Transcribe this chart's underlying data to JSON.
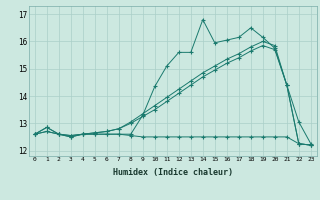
{
  "xlabel": "Humidex (Indice chaleur)",
  "bg_color": "#cce8e0",
  "line_color": "#1a7a6e",
  "grid_color": "#aacfc8",
  "xlim": [
    -0.5,
    23.5
  ],
  "ylim": [
    11.8,
    17.3
  ],
  "yticks": [
    12,
    13,
    14,
    15,
    16,
    17
  ],
  "xticks": [
    0,
    1,
    2,
    3,
    4,
    5,
    6,
    7,
    8,
    9,
    10,
    11,
    12,
    13,
    14,
    15,
    16,
    17,
    18,
    19,
    20,
    21,
    22,
    23
  ],
  "series": {
    "line_main": {
      "x": [
        0,
        1,
        2,
        3,
        4,
        5,
        6,
        7,
        8,
        9,
        10,
        11,
        12,
        13,
        14,
        15,
        16,
        17,
        18,
        19,
        20,
        21,
        22,
        23
      ],
      "y": [
        12.6,
        12.85,
        12.6,
        12.5,
        12.6,
        12.6,
        12.6,
        12.6,
        12.6,
        13.3,
        14.35,
        15.1,
        15.6,
        15.6,
        16.8,
        15.95,
        16.05,
        16.15,
        16.5,
        16.15,
        15.75,
        14.4,
        13.05,
        12.25
      ]
    },
    "line_flat": {
      "x": [
        0,
        1,
        2,
        3,
        4,
        5,
        6,
        7,
        8,
        9,
        10,
        11,
        12,
        13,
        14,
        15,
        16,
        17,
        18,
        19,
        20,
        21,
        22,
        23
      ],
      "y": [
        12.6,
        12.85,
        12.6,
        12.5,
        12.6,
        12.6,
        12.6,
        12.6,
        12.55,
        12.5,
        12.5,
        12.5,
        12.5,
        12.5,
        12.5,
        12.5,
        12.5,
        12.5,
        12.5,
        12.5,
        12.5,
        12.5,
        12.25,
        12.2
      ]
    },
    "line_diag1": {
      "x": [
        0,
        1,
        2,
        3,
        4,
        5,
        6,
        7,
        8,
        9,
        10,
        11,
        12,
        13,
        14,
        15,
        16,
        17,
        18,
        19,
        20,
        21,
        22,
        23
      ],
      "y": [
        12.6,
        12.7,
        12.6,
        12.55,
        12.6,
        12.65,
        12.7,
        12.8,
        13.05,
        13.35,
        13.65,
        13.95,
        14.25,
        14.55,
        14.85,
        15.1,
        15.35,
        15.55,
        15.8,
        16.0,
        15.85,
        14.4,
        12.25,
        12.2
      ]
    },
    "line_diag2": {
      "x": [
        0,
        1,
        2,
        3,
        4,
        5,
        6,
        7,
        8,
        9,
        10,
        11,
        12,
        13,
        14,
        15,
        16,
        17,
        18,
        19,
        20,
        21,
        22,
        23
      ],
      "y": [
        12.6,
        12.7,
        12.6,
        12.55,
        12.6,
        12.65,
        12.7,
        12.8,
        13.0,
        13.25,
        13.5,
        13.8,
        14.1,
        14.4,
        14.7,
        14.95,
        15.2,
        15.4,
        15.65,
        15.85,
        15.7,
        14.4,
        12.25,
        12.2
      ]
    }
  }
}
